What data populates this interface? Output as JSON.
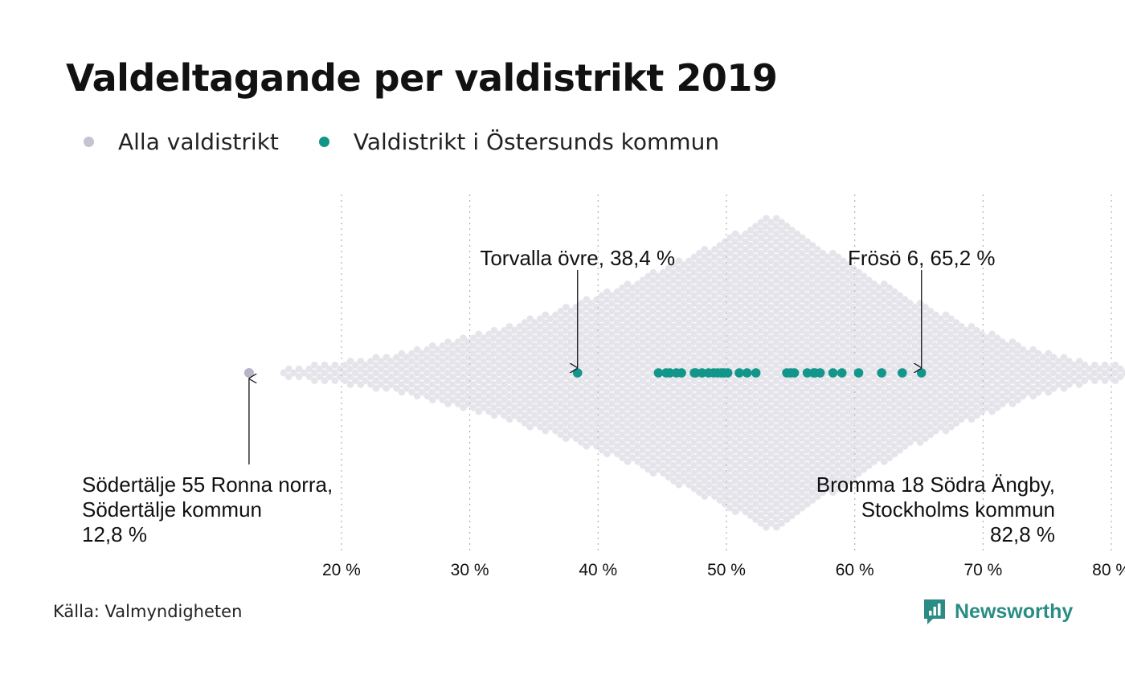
{
  "title": "Valdeltagande per valdistrikt 2019",
  "legend": [
    {
      "label": "Alla valdistrikt",
      "color": "#c4c3d0"
    },
    {
      "label": "Valdistrikt i Östersunds kommun",
      "color": "#13968a"
    }
  ],
  "source": "Källa: Valmyndigheten",
  "brand": {
    "name": "Newsworthy",
    "icon": "newsworthy-logo-icon",
    "color": "#2a8c84"
  },
  "chart_data": {
    "type": "scatter",
    "subtype": "beeswarm",
    "xlabel": "",
    "ylabel": "",
    "xlim": [
      12.8,
      82.8
    ],
    "x_ticks": [
      20,
      30,
      40,
      50,
      60,
      70,
      80
    ],
    "x_tick_labels": [
      "20 %",
      "30 %",
      "40 %",
      "50 %",
      "60 %",
      "70 %",
      "80 %"
    ],
    "grid": "vertical-dotted",
    "legend_placement": "top-left",
    "series": [
      {
        "name": "Alla valdistrikt",
        "color": "#c4c3d0",
        "distribution": {
          "min": 12.8,
          "max": 82.8,
          "peak": 53.8
        }
      },
      {
        "name": "Valdistrikt i Östersunds kommun",
        "color": "#13968a",
        "x": [
          38.4,
          44.7,
          45.3,
          45.6,
          46.1,
          46.5,
          47.5,
          47.6,
          48.1,
          48.6,
          49.0,
          49.3,
          49.6,
          49.8,
          50.1,
          51.0,
          51.6,
          52.3,
          54.7,
          55.0,
          55.3,
          56.3,
          56.8,
          56.9,
          57.3,
          58.3,
          59.0,
          60.3,
          62.1,
          63.7,
          65.2
        ]
      }
    ],
    "annotations": [
      {
        "lines": [
          "Torvalla övre, 38,4 %"
        ],
        "x": 38.4
      },
      {
        "lines": [
          "Frösö 6, 65,2 %"
        ],
        "x": 65.2
      },
      {
        "lines": [
          "Södertälje 55 Ronna norra,",
          "Södertälje kommun",
          "12,8 %"
        ],
        "x": 12.8
      },
      {
        "lines": [
          "Bromma 18 Södra Ängby,",
          "Stockholms kommun",
          "82,8 %"
        ],
        "x": 82.8
      }
    ]
  }
}
